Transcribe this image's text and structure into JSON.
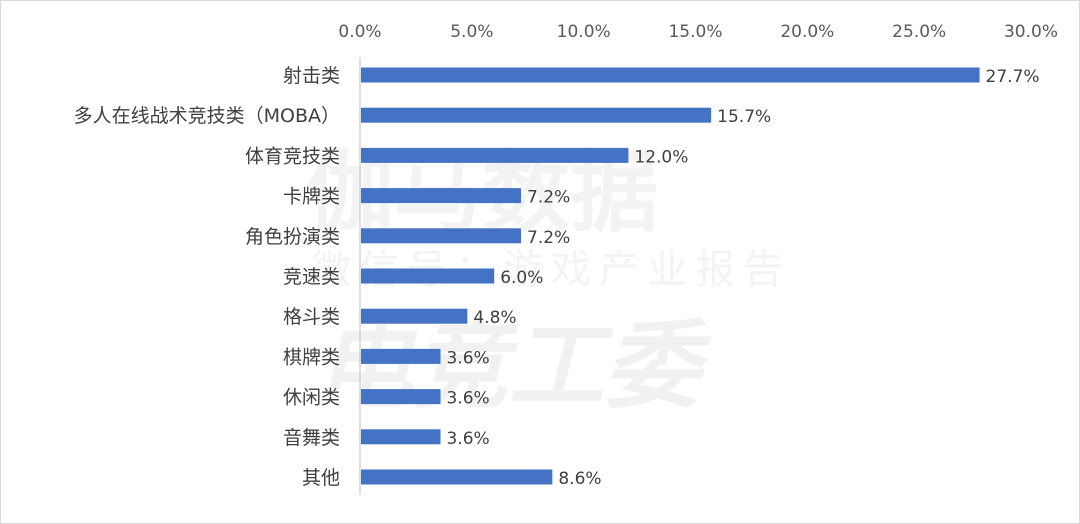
{
  "watermark": {
    "line1": "伽马数据",
    "line2": "微信号：游戏产业报告",
    "line3": "电竞工委"
  },
  "colors": {
    "bar": "#4472C4",
    "axis": "#bfbfbf"
  },
  "chart_data": {
    "type": "bar",
    "orientation": "horizontal",
    "categories": [
      "射击类",
      "多人在线战术竞技类（MOBA）",
      "体育竞技类",
      "卡牌类",
      "角色扮演类",
      "竞速类",
      "格斗类",
      "棋牌类",
      "休闲类",
      "音舞类",
      "其他"
    ],
    "values": [
      27.7,
      15.7,
      12.0,
      7.2,
      7.2,
      6.0,
      4.8,
      3.6,
      3.6,
      3.6,
      8.6
    ],
    "data_labels": [
      "27.7%",
      "15.7%",
      "12.0%",
      "7.2%",
      "7.2%",
      "6.0%",
      "4.8%",
      "3.6%",
      "3.6%",
      "3.6%",
      "8.6%"
    ],
    "xlim": [
      0,
      30
    ],
    "xticks": [
      0,
      5,
      10,
      15,
      20,
      25,
      30
    ],
    "xtick_labels": [
      "0.0%",
      "5.0%",
      "10.0%",
      "15.0%",
      "20.0%",
      "25.0%",
      "30.0%"
    ],
    "axis_position": "top",
    "grid": false,
    "legend": "none",
    "title": "",
    "xlabel": "",
    "ylabel": ""
  }
}
